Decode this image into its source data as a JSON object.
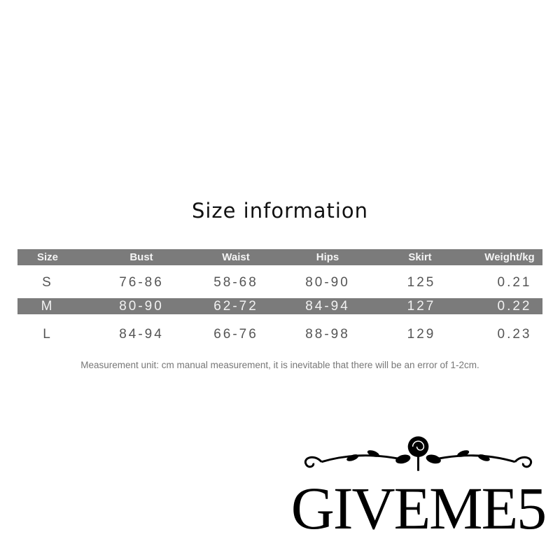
{
  "title": "Size information",
  "table": {
    "headers": [
      "Size",
      "Bust",
      "Waist",
      "Hips",
      "Skirt",
      "Weight/kg"
    ],
    "rows": [
      [
        "S",
        "76-86",
        "58-68",
        "80-90",
        "125",
        "0.21"
      ],
      [
        "M",
        "80-90",
        "62-72",
        "84-94",
        "127",
        "0.22"
      ],
      [
        "L",
        "84-94",
        "66-76",
        "88-98",
        "129",
        "0.23"
      ]
    ]
  },
  "note": "Measurement unit: cm manual measurement, it is inevitable that there will be an error of 1-2cm.",
  "logo": {
    "text": "GIVEME5",
    "icon": "rose-ornament-icon"
  },
  "colors": {
    "header_bar": "#7b7b7b",
    "text": "#555555"
  }
}
